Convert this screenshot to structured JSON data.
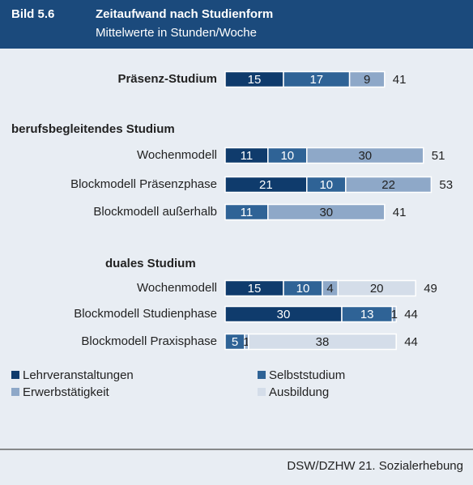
{
  "chart_data": {
    "type": "stacked-bar",
    "figure_label": "Bild 5.6",
    "title": "Zeitaufwand nach Studienform",
    "subtitle": "Mittelwerte in Stunden/Woche",
    "group_labels": [
      "berufsbegleitendes Studium",
      "duales Studium"
    ],
    "categories": [
      "Präsenz-Studium",
      "Wochenmodell",
      "Blockmodell Präsenzphase",
      "Blockmodell außerhalb",
      "Wochenmodell",
      "Blockmodell Studienphase",
      "Blockmodell Praxisphase"
    ],
    "series": [
      {
        "name": "Lehrveranstaltungen",
        "color": "#0f3b6c",
        "values": [
          15,
          11,
          21,
          null,
          15,
          30,
          null
        ]
      },
      {
        "name": "Selbststudium",
        "color": "#2f6396",
        "values": [
          17,
          10,
          10,
          11,
          10,
          13,
          5
        ]
      },
      {
        "name": "Erwerbstätigkeit",
        "color": "#8ea8c8",
        "values": [
          9,
          30,
          22,
          30,
          4,
          1,
          1
        ]
      },
      {
        "name": "Ausbildung",
        "color": "#d4dde9",
        "values": [
          null,
          null,
          null,
          null,
          20,
          null,
          38
        ]
      }
    ],
    "totals": [
      41,
      51,
      53,
      41,
      49,
      44,
      44
    ],
    "source": "DSW/DZHW 21. Sozialerhebung"
  }
}
